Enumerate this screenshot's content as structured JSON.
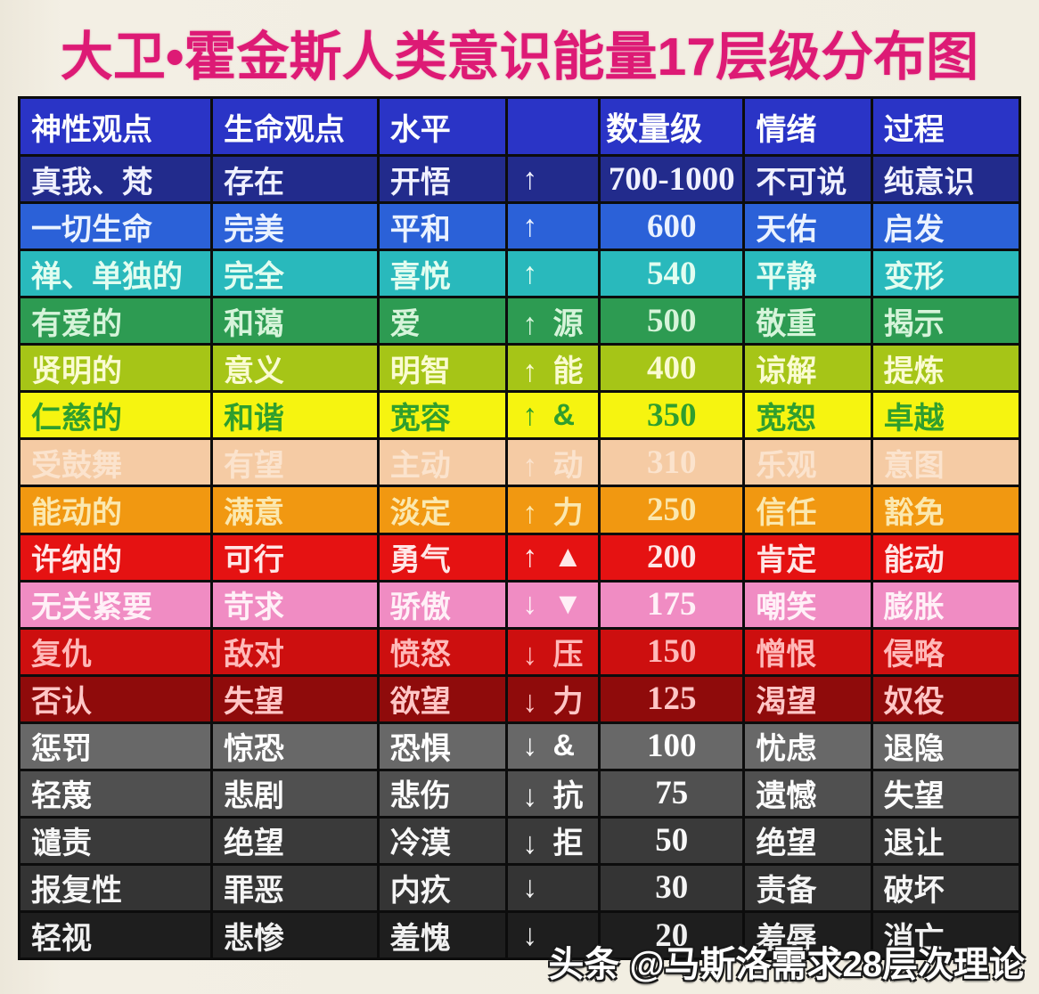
{
  "title": "大卫•霍金斯人类意识能量17层级分布图",
  "title_color": "#dd1a75",
  "watermark": "头条 @马斯洛需求28层次理论",
  "chart_data": {
    "type": "table",
    "title": "大卫•霍金斯人类意识能量17层级分布图",
    "columns": [
      "神性观点",
      "生命观点",
      "水平",
      "",
      "数量级",
      "情绪",
      "过程"
    ],
    "header_bg": "#2a34c6",
    "header_fg": "#ffffff",
    "rows": [
      [
        "真我、梵",
        "存在",
        "开悟",
        "↑",
        "700-1000",
        "不可说",
        "纯意识"
      ],
      [
        "一切生命",
        "完美",
        "平和",
        "↑",
        "600",
        "天佑",
        "启发"
      ],
      [
        "禅、单独的",
        "完全",
        "喜悦",
        "↑",
        "540",
        "平静",
        "变形"
      ],
      [
        "有爱的",
        "和蔼",
        "爱",
        "↑ 源",
        "500",
        "敬重",
        "揭示"
      ],
      [
        "贤明的",
        "意义",
        "明智",
        "↑ 能",
        "400",
        "谅解",
        "提炼"
      ],
      [
        "仁慈的",
        "和谐",
        "宽容",
        "↑ &",
        "350",
        "宽恕",
        "卓越"
      ],
      [
        "受鼓舞",
        "有望",
        "主动",
        "↑ 动",
        "310",
        "乐观",
        "意图"
      ],
      [
        "能动的",
        "满意",
        "淡定",
        "↑ 力",
        "250",
        "信任",
        "豁免"
      ],
      [
        "许纳的",
        "可行",
        "勇气",
        "↑ ▲",
        "200",
        "肯定",
        "能动"
      ],
      [
        "无关紧要",
        "苛求",
        "骄傲",
        "↓ ▼",
        "175",
        "嘲笑",
        "膨胀"
      ],
      [
        "复仇",
        "敌对",
        "愤怒",
        "↓ 压",
        "150",
        "憎恨",
        "侵略"
      ],
      [
        "否认",
        "失望",
        "欲望",
        "↓ 力",
        "125",
        "渴望",
        "奴役"
      ],
      [
        "惩罚",
        "惊恐",
        "恐惧",
        "↓ &",
        "100",
        "忧虑",
        "退隐"
      ],
      [
        "轻蔑",
        "悲剧",
        "悲伤",
        "↓ 抗",
        "75",
        "遗憾",
        "失望"
      ],
      [
        "谴责",
        "绝望",
        "冷漠",
        "↓ 拒",
        "50",
        "绝望",
        "退让"
      ],
      [
        "报复性",
        "罪恶",
        "内疚",
        "↓",
        "30",
        "责备",
        "破坏"
      ],
      [
        "轻视",
        "悲惨",
        "羞愧",
        "↓",
        "20",
        "羞辱",
        "消亡"
      ]
    ],
    "row_bg": [
      "#222b8c",
      "#2b61d8",
      "#29b9bc",
      "#2d9b52",
      "#a6c517",
      "#f6f410",
      "#f5cba4",
      "#f19811",
      "#e51212",
      "#f08cc3",
      "#cd0f0f",
      "#8f0b0b",
      "#686868",
      "#505050",
      "#3a3a3a",
      "#343434",
      "#1e1e1e"
    ],
    "row_fg": [
      "#f0f1ff",
      "#eaf2ff",
      "#e2fdf0",
      "#d6f4da",
      "#fafbd2",
      "#2f9e2e",
      "#fbe3cd",
      "#fbe8af",
      "#ffe7e7",
      "#fff0f7",
      "#ffb9b9",
      "#ffc6c6",
      "#ffffff",
      "#fcfcfc",
      "#f8f8f8",
      "#f5f5f5",
      "#f0f0f0"
    ],
    "layout_hints": {
      "grid": "black 3px lines",
      "magnitude_font": "serif",
      "arrow_up_rows": 9,
      "arrow_down_rows": 8
    }
  }
}
